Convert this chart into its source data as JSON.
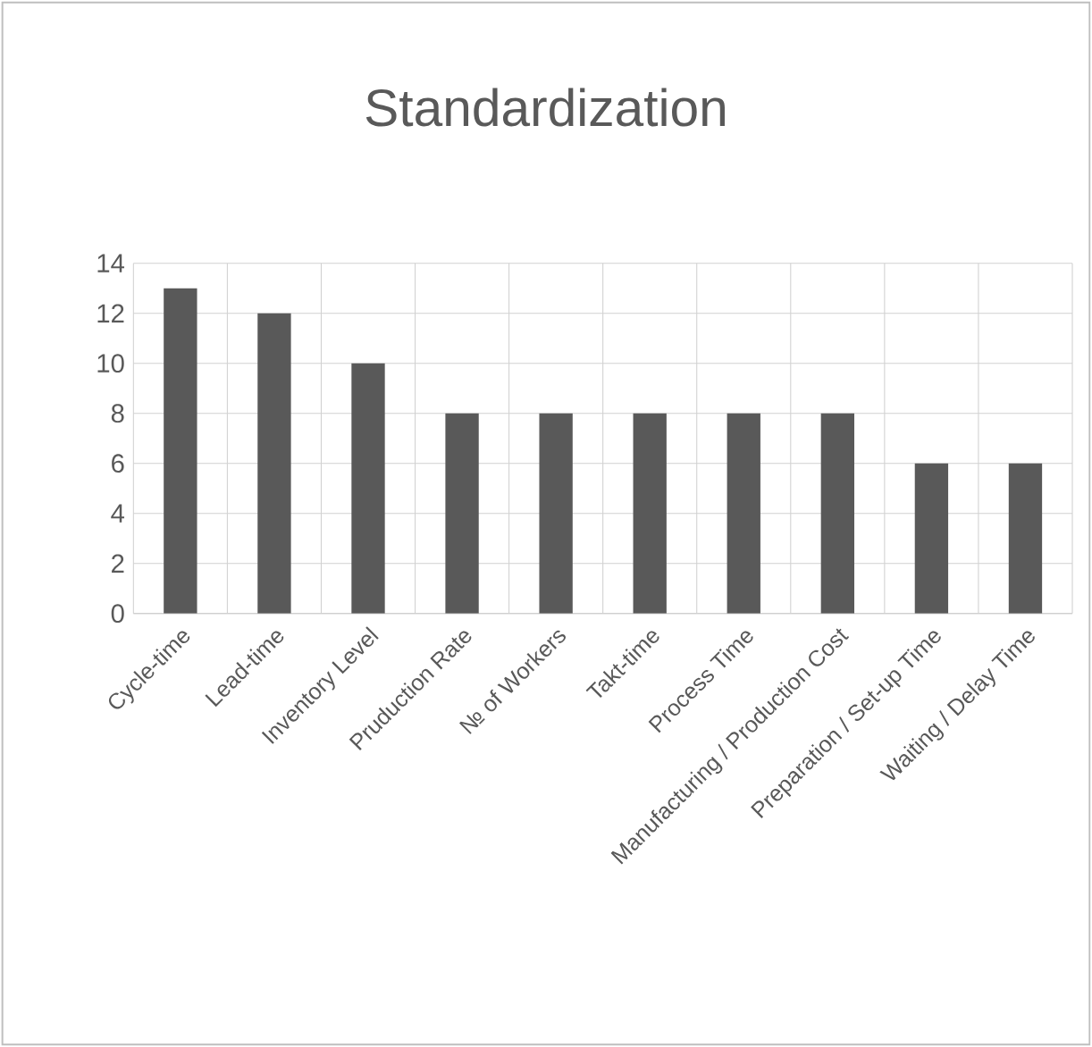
{
  "chart_data": {
    "type": "bar",
    "title": "Standardization",
    "categories": [
      "Cycle-time",
      "Lead-time",
      "Inventory Level",
      "Pruduction Rate",
      "№ of Workers",
      "Takt-time",
      "Process Time",
      "Manufacturing / Production Cost",
      "Preparation / Set-up Time",
      "Waiting / Delay Time"
    ],
    "values": [
      13,
      12,
      10,
      8,
      8,
      8,
      8,
      8,
      6,
      6
    ],
    "color": "#595959",
    "ylim": [
      0,
      14
    ],
    "yticks": [
      0,
      2,
      4,
      6,
      8,
      10,
      12,
      14
    ],
    "grid": true
  }
}
